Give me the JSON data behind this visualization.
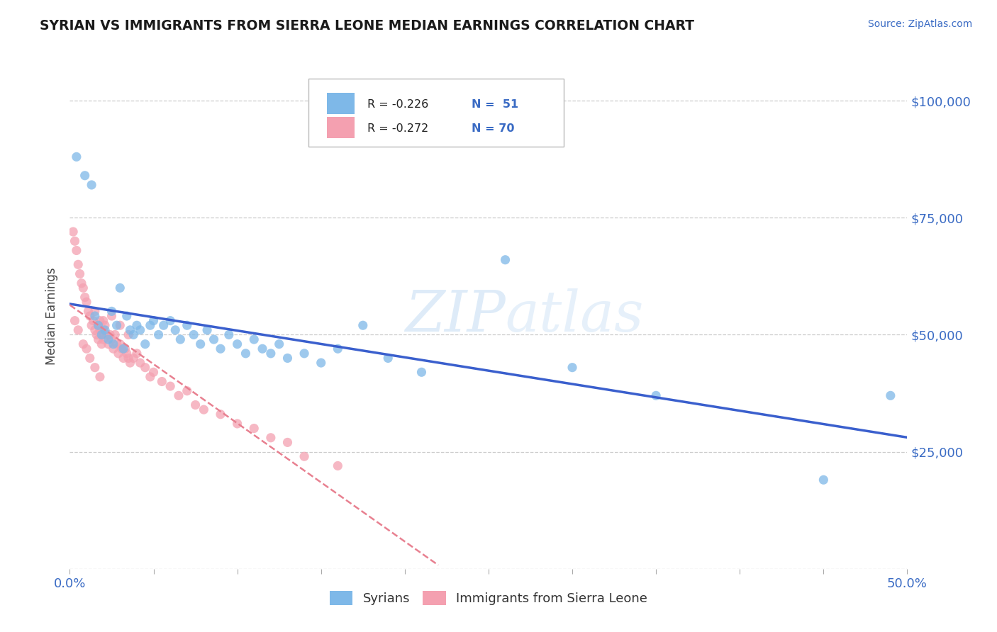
{
  "title": "SYRIAN VS IMMIGRANTS FROM SIERRA LEONE MEDIAN EARNINGS CORRELATION CHART",
  "source": "Source: ZipAtlas.com",
  "ylabel": "Median Earnings",
  "yticks": [
    0,
    25000,
    50000,
    75000,
    100000
  ],
  "ytick_labels": [
    "",
    "$25,000",
    "$50,000",
    "$75,000",
    "$100,000"
  ],
  "xlim": [
    0.0,
    0.5
  ],
  "ylim": [
    0,
    108000
  ],
  "legend_r1": "R = -0.226",
  "legend_n1": "N =  51",
  "legend_r2": "R = -0.272",
  "legend_n2": "N = 70",
  "label1": "Syrians",
  "label2": "Immigrants from Sierra Leone",
  "color1": "#7eb8e8",
  "color2": "#f4a0b0",
  "trendline1_color": "#3a5fcd",
  "trendline2_color": "#e88090",
  "background": "#ffffff",
  "syrians_x": [
    0.004,
    0.009,
    0.013,
    0.015,
    0.017,
    0.019,
    0.021,
    0.023,
    0.025,
    0.026,
    0.028,
    0.03,
    0.032,
    0.034,
    0.036,
    0.038,
    0.04,
    0.042,
    0.045,
    0.048,
    0.05,
    0.053,
    0.056,
    0.06,
    0.063,
    0.066,
    0.07,
    0.074,
    0.078,
    0.082,
    0.086,
    0.09,
    0.095,
    0.1,
    0.105,
    0.11,
    0.115,
    0.12,
    0.125,
    0.13,
    0.14,
    0.15,
    0.16,
    0.175,
    0.19,
    0.21,
    0.26,
    0.3,
    0.35,
    0.45,
    0.49
  ],
  "syrians_y": [
    88000,
    84000,
    82000,
    54000,
    52000,
    50000,
    51000,
    49000,
    55000,
    48000,
    52000,
    60000,
    47000,
    54000,
    51000,
    50000,
    52000,
    51000,
    48000,
    52000,
    53000,
    50000,
    52000,
    53000,
    51000,
    49000,
    52000,
    50000,
    48000,
    51000,
    49000,
    47000,
    50000,
    48000,
    46000,
    49000,
    47000,
    46000,
    48000,
    45000,
    46000,
    44000,
    47000,
    52000,
    45000,
    42000,
    66000,
    43000,
    37000,
    19000,
    37000
  ],
  "sierra_leone_x": [
    0.002,
    0.003,
    0.004,
    0.005,
    0.006,
    0.007,
    0.008,
    0.009,
    0.01,
    0.011,
    0.012,
    0.013,
    0.014,
    0.015,
    0.015,
    0.016,
    0.017,
    0.017,
    0.018,
    0.018,
    0.019,
    0.019,
    0.02,
    0.02,
    0.021,
    0.022,
    0.023,
    0.024,
    0.025,
    0.026,
    0.027,
    0.028,
    0.029,
    0.03,
    0.031,
    0.032,
    0.033,
    0.034,
    0.035,
    0.036,
    0.038,
    0.04,
    0.042,
    0.045,
    0.048,
    0.05,
    0.055,
    0.06,
    0.065,
    0.07,
    0.075,
    0.08,
    0.09,
    0.1,
    0.11,
    0.12,
    0.13,
    0.14,
    0.16,
    0.003,
    0.005,
    0.008,
    0.01,
    0.012,
    0.015,
    0.018,
    0.02,
    0.025,
    0.03,
    0.035
  ],
  "sierra_leone_y": [
    72000,
    70000,
    68000,
    65000,
    63000,
    61000,
    60000,
    58000,
    57000,
    55000,
    54000,
    52000,
    53000,
    51000,
    55000,
    50000,
    52000,
    49000,
    51000,
    53000,
    50000,
    48000,
    51000,
    49000,
    52000,
    50000,
    48000,
    50000,
    49000,
    47000,
    50000,
    48000,
    46000,
    48000,
    47000,
    45000,
    47000,
    46000,
    45000,
    44000,
    45000,
    46000,
    44000,
    43000,
    41000,
    42000,
    40000,
    39000,
    37000,
    38000,
    35000,
    34000,
    33000,
    31000,
    30000,
    28000,
    27000,
    24000,
    22000,
    53000,
    51000,
    48000,
    47000,
    45000,
    43000,
    41000,
    53000,
    54000,
    52000,
    50000
  ]
}
